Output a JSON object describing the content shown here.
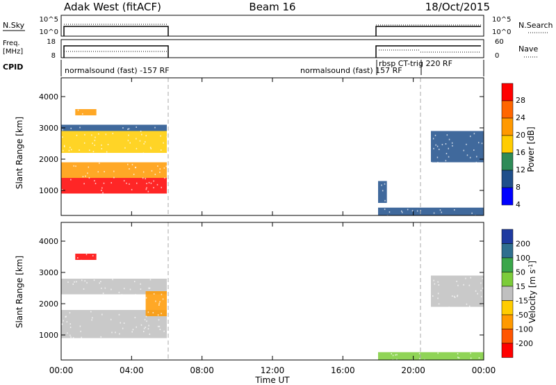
{
  "header": {
    "station": "Adak West (fitACF)",
    "beam": "Beam 16",
    "date": "18/Oct/2015"
  },
  "top_panels": {
    "nsky_label": "N.Sky",
    "nsky_ticks": [
      "10^5",
      "10^0"
    ],
    "nsearch_label": "N.Search",
    "nsearch_ticks": [
      "10^5",
      "10^0"
    ],
    "freq_label": "Freq.",
    "freq_unit": "[MHz]",
    "freq_ticks": [
      "18",
      "8"
    ],
    "nave_label": "Nave",
    "nave_ticks": [
      "60",
      "0"
    ],
    "cpid_label": "CPID",
    "cpid_segments": [
      {
        "text": "normalsound (fast) -157 RF"
      },
      {
        "text": "normalsound (fast) 157 RF"
      },
      {
        "text": "rbsp CT-trig 220 RF"
      }
    ]
  },
  "axes": {
    "ylabel": "Slant Range [km]",
    "xlabel": "Time UT",
    "yticks": [
      "1000",
      "2000",
      "3000",
      "4000"
    ],
    "xticks": [
      "00:00",
      "04:00",
      "08:00",
      "12:00",
      "16:00",
      "20:00",
      "00:00"
    ]
  },
  "colorbars": {
    "power": {
      "label": "Power [dB]",
      "ticks": [
        "28",
        "24",
        "20",
        "16",
        "12",
        "8",
        "4"
      ],
      "colors": [
        "#ff0000",
        "#ff6600",
        "#ff9900",
        "#ffcc00",
        "#2e8b57",
        "#1f4f8b",
        "#0000ff"
      ]
    },
    "velocity": {
      "label": "Velocity [m s",
      "label_sup": "-1",
      "label_end": "]",
      "ticks": [
        "200",
        "100",
        "50",
        "15",
        "-15",
        "-50",
        "-100",
        "-200"
      ],
      "colors": [
        "#1e3aa0",
        "#2f6f8f",
        "#3aa64a",
        "#7ccc3a",
        "#c0c0c0",
        "#ffcc00",
        "#ff9900",
        "#ff5500",
        "#ff0000"
      ]
    }
  },
  "chart_data": [
    {
      "type": "heatmap",
      "title": "Power",
      "ylabel": "Slant Range [km]",
      "xlabel": "Time UT",
      "xlim": [
        0,
        24
      ],
      "ylim": [
        200,
        4600
      ],
      "colorbar_label": "Power [dB]",
      "colorbar_ticks": [
        4,
        8,
        12,
        16,
        20,
        24,
        28
      ],
      "regions": [
        {
          "x": [
            0.0,
            6.0
          ],
          "y": [
            900,
            1400
          ],
          "value": 28
        },
        {
          "x": [
            0.0,
            6.0
          ],
          "y": [
            1400,
            1900
          ],
          "value": 18
        },
        {
          "x": [
            0.0,
            6.0
          ],
          "y": [
            2200,
            2900
          ],
          "value": 16
        },
        {
          "x": [
            0.0,
            6.0
          ],
          "y": [
            2900,
            3100
          ],
          "value": 8
        },
        {
          "x": [
            0.8,
            2.0
          ],
          "y": [
            3400,
            3600
          ],
          "value": 20
        },
        {
          "x": [
            18.0,
            24.0
          ],
          "y": [
            200,
            450
          ],
          "value": 8
        },
        {
          "x": [
            18.0,
            18.5
          ],
          "y": [
            600,
            1300
          ],
          "value": 8
        },
        {
          "x": [
            21.0,
            24.0
          ],
          "y": [
            1900,
            2900
          ],
          "value": 6
        }
      ]
    },
    {
      "type": "heatmap",
      "title": "Velocity",
      "ylabel": "Slant Range [km]",
      "xlabel": "Time UT",
      "xlim": [
        0,
        24
      ],
      "ylim": [
        200,
        4600
      ],
      "colorbar_label": "Velocity [m s-1]",
      "colorbar_ticks": [
        -200,
        -100,
        -50,
        -15,
        15,
        50,
        100,
        200
      ],
      "regions": [
        {
          "x": [
            0.0,
            6.0
          ],
          "y": [
            900,
            1800
          ],
          "value": 0
        },
        {
          "x": [
            0.0,
            6.0
          ],
          "y": [
            2300,
            2800
          ],
          "value": 0
        },
        {
          "x": [
            0.8,
            2.0
          ],
          "y": [
            3400,
            3600
          ],
          "value": -200
        },
        {
          "x": [
            4.8,
            6.0
          ],
          "y": [
            1600,
            2400
          ],
          "value": -80
        },
        {
          "x": [
            18.0,
            24.0
          ],
          "y": [
            200,
            450
          ],
          "value": 50
        },
        {
          "x": [
            21.0,
            24.0
          ],
          "y": [
            1900,
            2900
          ],
          "value": 0
        }
      ]
    }
  ]
}
